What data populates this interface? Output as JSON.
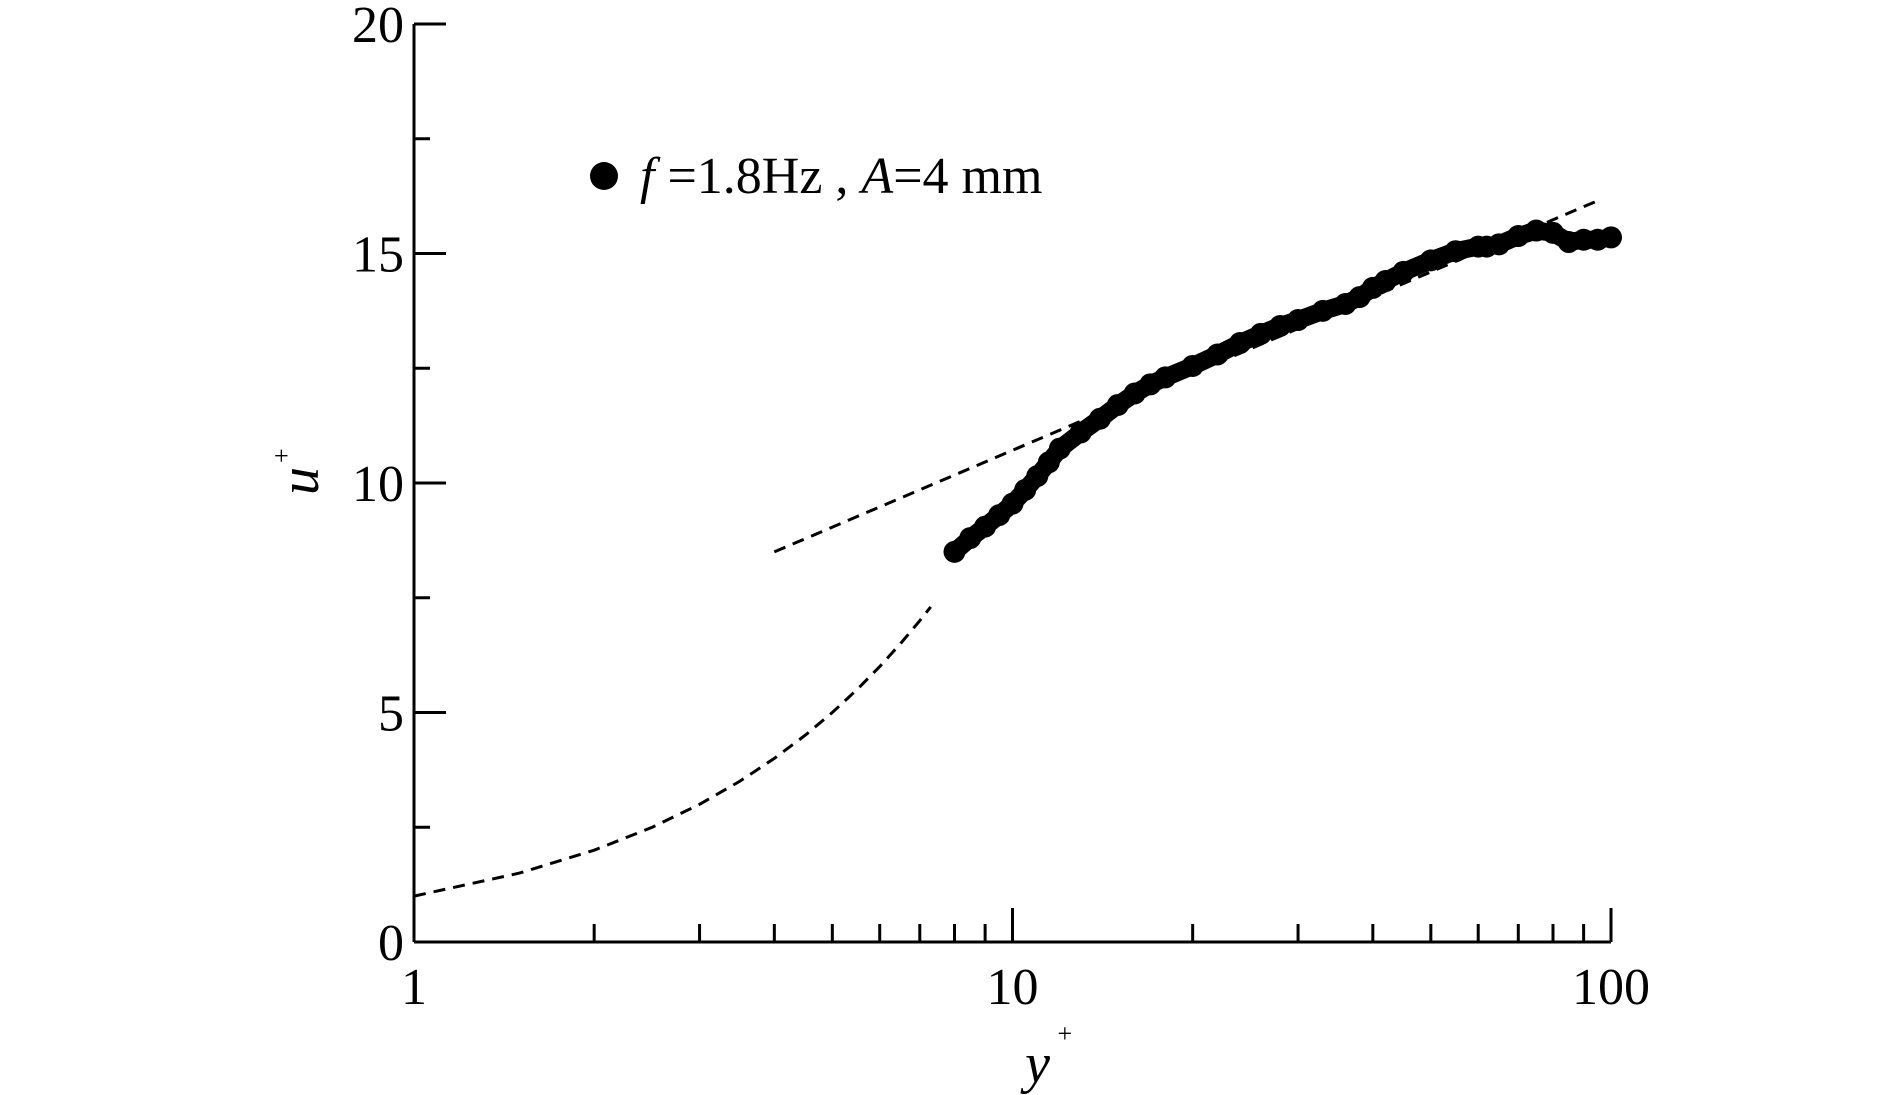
{
  "chart_data": {
    "type": "line",
    "x_scale": "log",
    "xlim": [
      1,
      100
    ],
    "ylim": [
      0,
      20
    ],
    "xlabel": "y",
    "xlabel_sup": "+",
    "ylabel": "u",
    "ylabel_sup": "+",
    "x_tick_labels": [
      "1",
      "10",
      "100"
    ],
    "y_tick_labels": [
      "0",
      "5",
      "10",
      "15",
      "20"
    ],
    "x_tick_values": [
      1,
      10,
      100
    ],
    "y_tick_values": [
      0,
      5,
      10,
      15,
      20
    ],
    "grid": false,
    "legend_placement": "top-left",
    "series": [
      {
        "legend_symbol": "filled-circle",
        "legend_label_parts": [
          {
            "text": "f",
            "italic": true
          },
          {
            "text": " =1.8Hz , ",
            "italic": false
          },
          {
            "text": "A",
            "italic": true
          },
          {
            "text": "=4 mm",
            "italic": false
          }
        ],
        "color": "#000000",
        "style": "markers",
        "x": [
          8,
          8.5,
          9,
          9.5,
          10,
          10.5,
          11,
          11.5,
          12,
          13,
          14,
          15,
          16,
          17,
          18,
          20,
          22,
          24,
          26,
          28,
          30,
          33,
          36,
          38,
          40,
          42,
          45,
          50,
          55,
          60,
          62,
          65,
          70,
          75,
          80,
          85,
          90,
          95,
          100
        ],
        "y": [
          8.5,
          8.8,
          9.05,
          9.3,
          9.55,
          9.85,
          10.15,
          10.45,
          10.75,
          11.1,
          11.4,
          11.7,
          11.95,
          12.15,
          12.3,
          12.55,
          12.8,
          13.05,
          13.25,
          13.42,
          13.55,
          13.75,
          13.9,
          14.05,
          14.25,
          14.4,
          14.6,
          14.85,
          15.05,
          15.15,
          15.15,
          15.2,
          15.38,
          15.5,
          15.45,
          15.25,
          15.3,
          15.3,
          15.35
        ]
      },
      {
        "color": "#000000",
        "style": "dashed",
        "x": [
          1,
          1.5,
          2,
          2.5,
          3,
          3.5,
          4,
          4.5,
          5,
          5.5,
          6,
          6.5,
          7,
          7.3
        ],
        "y": [
          1,
          1.5,
          2,
          2.5,
          3,
          3.5,
          4,
          4.5,
          5,
          5.5,
          6,
          6.5,
          7,
          7.3
        ]
      },
      {
        "color": "#000000",
        "style": "dashed",
        "x": [
          4,
          95
        ],
        "y": [
          8.5,
          16.15
        ]
      }
    ]
  }
}
